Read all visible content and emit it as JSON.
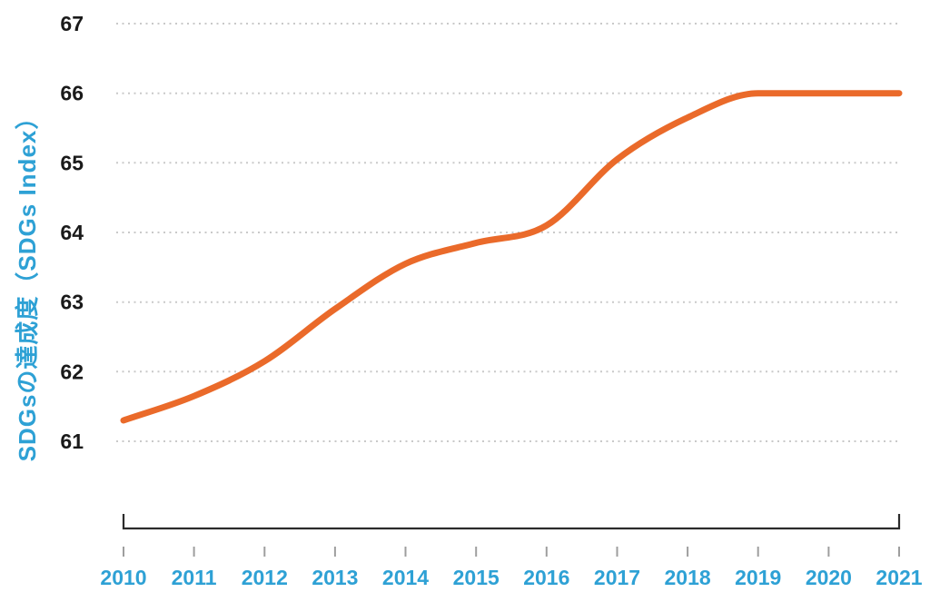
{
  "chart_data": {
    "type": "line",
    "title": "",
    "x": [
      2010,
      2011,
      2012,
      2013,
      2014,
      2015,
      2016,
      2017,
      2018,
      2019,
      2020,
      2021
    ],
    "series": [
      {
        "name": "SDGs Index",
        "values": [
          61.3,
          61.65,
          62.15,
          62.9,
          63.55,
          63.85,
          64.1,
          65.05,
          65.65,
          66,
          66,
          66
        ],
        "color": "#EA6A2A"
      }
    ],
    "xlabel": "",
    "ylabel": "SDGsの達成度（SDGs Index）",
    "ylim": [
      61,
      67
    ],
    "yticks": [
      61,
      62,
      63,
      64,
      65,
      66,
      67
    ],
    "grid": "dotted-horizontal",
    "legend_position": "none",
    "curve": "smooth"
  },
  "colors": {
    "line": "#EA6A2A",
    "axis_text": "#1A1A1A",
    "x_labels": "#2EA1D5",
    "y_title": "#2EA1D5",
    "gridline": "#C9C9C9",
    "bracket": "#2B2B2B",
    "tick": "#9E9E9E",
    "background": "#FFFFFF"
  }
}
